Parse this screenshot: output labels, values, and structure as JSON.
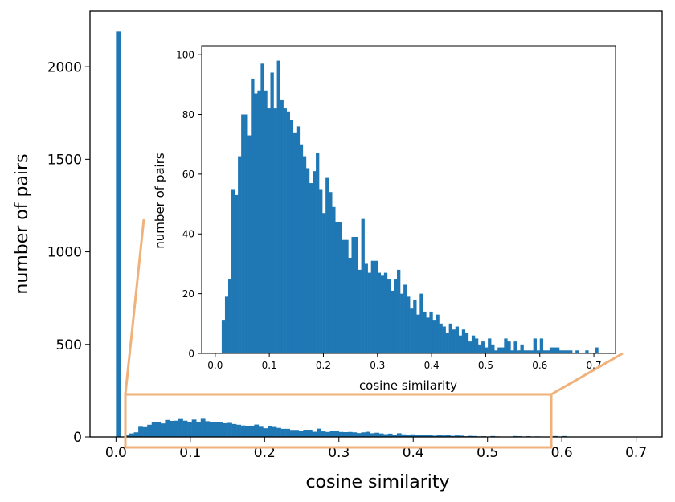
{
  "chart_data": [
    {
      "type": "bar",
      "role": "main histogram",
      "xlabel": "cosine similarity",
      "ylabel": "number of pairs",
      "xlim": [
        -0.035,
        0.735
      ],
      "ylim": [
        0,
        2300
      ],
      "xticks": [
        0.0,
        0.1,
        0.2,
        0.3,
        0.4,
        0.5,
        0.6,
        0.7
      ],
      "xtick_labels": [
        "0.0",
        "0.1",
        "0.2",
        "0.3",
        "0.4",
        "0.5",
        "0.6",
        "0.7"
      ],
      "yticks": [
        0,
        500,
        1000,
        1500,
        2000
      ],
      "ytick_labels": [
        "0",
        "500",
        "1000",
        "1500",
        "2000"
      ],
      "bin_width": 0.006,
      "series": [
        {
          "values": [
            [
              0.0,
              2190
            ]
          ]
        }
      ],
      "color": "#1f77b4",
      "grid": false,
      "legend": "none"
    },
    {
      "type": "bar",
      "role": "inset zoom histogram",
      "xlabel": "cosine similarity",
      "ylabel": "number of pairs",
      "xlim": [
        -0.025,
        0.74
      ],
      "ylim": [
        0,
        103
      ],
      "xticks": [
        0.0,
        0.1,
        0.2,
        0.3,
        0.4,
        0.5,
        0.6,
        0.7
      ],
      "xtick_labels": [
        "0.0",
        "0.1",
        "0.2",
        "0.3",
        "0.4",
        "0.5",
        "0.6",
        "0.7"
      ],
      "yticks": [
        0,
        20,
        40,
        60,
        80,
        100
      ],
      "ytick_labels": [
        "0",
        "20",
        "40",
        "60",
        "80",
        "100"
      ],
      "bin_width": 0.006,
      "series": [
        {
          "values": [
            [
              0.012,
              11
            ],
            [
              0.018,
              19
            ],
            [
              0.024,
              25
            ],
            [
              0.03,
              55
            ],
            [
              0.036,
              53
            ],
            [
              0.042,
              66
            ],
            [
              0.048,
              80
            ],
            [
              0.054,
              80
            ],
            [
              0.06,
              73
            ],
            [
              0.066,
              92
            ],
            [
              0.072,
              87
            ],
            [
              0.078,
              88
            ],
            [
              0.084,
              97
            ],
            [
              0.09,
              88
            ],
            [
              0.096,
              82
            ],
            [
              0.102,
              94
            ],
            [
              0.108,
              82
            ],
            [
              0.114,
              98
            ],
            [
              0.12,
              85
            ],
            [
              0.126,
              82
            ],
            [
              0.132,
              81
            ],
            [
              0.138,
              78
            ],
            [
              0.144,
              74
            ],
            [
              0.15,
              76
            ],
            [
              0.156,
              70
            ],
            [
              0.162,
              66
            ],
            [
              0.168,
              62
            ],
            [
              0.174,
              57
            ],
            [
              0.18,
              61
            ],
            [
              0.186,
              67
            ],
            [
              0.192,
              55
            ],
            [
              0.198,
              47
            ],
            [
              0.204,
              59
            ],
            [
              0.21,
              54
            ],
            [
              0.216,
              49
            ],
            [
              0.222,
              44
            ],
            [
              0.228,
              44
            ],
            [
              0.234,
              38
            ],
            [
              0.24,
              38
            ],
            [
              0.246,
              32
            ],
            [
              0.252,
              39
            ],
            [
              0.258,
              39
            ],
            [
              0.264,
              28
            ],
            [
              0.27,
              45
            ],
            [
              0.276,
              30
            ],
            [
              0.282,
              27
            ],
            [
              0.288,
              31
            ],
            [
              0.294,
              31
            ],
            [
              0.3,
              27
            ],
            [
              0.306,
              26
            ],
            [
              0.312,
              27
            ],
            [
              0.318,
              25
            ],
            [
              0.324,
              21
            ],
            [
              0.33,
              25
            ],
            [
              0.336,
              28
            ],
            [
              0.342,
              20
            ],
            [
              0.348,
              23
            ],
            [
              0.354,
              19
            ],
            [
              0.36,
              15
            ],
            [
              0.366,
              18
            ],
            [
              0.372,
              13
            ],
            [
              0.378,
              20
            ],
            [
              0.384,
              14
            ],
            [
              0.39,
              12
            ],
            [
              0.396,
              14
            ],
            [
              0.402,
              11
            ],
            [
              0.408,
              13
            ],
            [
              0.414,
              10
            ],
            [
              0.42,
              9
            ],
            [
              0.426,
              7
            ],
            [
              0.432,
              10
            ],
            [
              0.438,
              8
            ],
            [
              0.444,
              9
            ],
            [
              0.45,
              6
            ],
            [
              0.456,
              8
            ],
            [
              0.462,
              7
            ],
            [
              0.468,
              4
            ],
            [
              0.474,
              6
            ],
            [
              0.48,
              5
            ],
            [
              0.486,
              3
            ],
            [
              0.492,
              4
            ],
            [
              0.498,
              2
            ],
            [
              0.504,
              5
            ],
            [
              0.51,
              3
            ],
            [
              0.516,
              1
            ],
            [
              0.522,
              2
            ],
            [
              0.528,
              2
            ],
            [
              0.534,
              5
            ],
            [
              0.54,
              4
            ],
            [
              0.546,
              1
            ],
            [
              0.552,
              4
            ],
            [
              0.558,
              1
            ],
            [
              0.564,
              3
            ],
            [
              0.57,
              1
            ],
            [
              0.576,
              1
            ],
            [
              0.582,
              1
            ],
            [
              0.588,
              5
            ],
            [
              0.594,
              1
            ],
            [
              0.6,
              5
            ],
            [
              0.606,
              1
            ],
            [
              0.612,
              1
            ],
            [
              0.618,
              2
            ],
            [
              0.624,
              2
            ],
            [
              0.63,
              2
            ],
            [
              0.636,
              1
            ],
            [
              0.642,
              1
            ],
            [
              0.648,
              1
            ],
            [
              0.654,
              1
            ],
            [
              0.666,
              1
            ],
            [
              0.684,
              1
            ],
            [
              0.702,
              2
            ]
          ]
        }
      ],
      "color": "#1f77b4",
      "grid": false,
      "legend": "none"
    }
  ],
  "zoom_indicator_color": "#f0b27a"
}
